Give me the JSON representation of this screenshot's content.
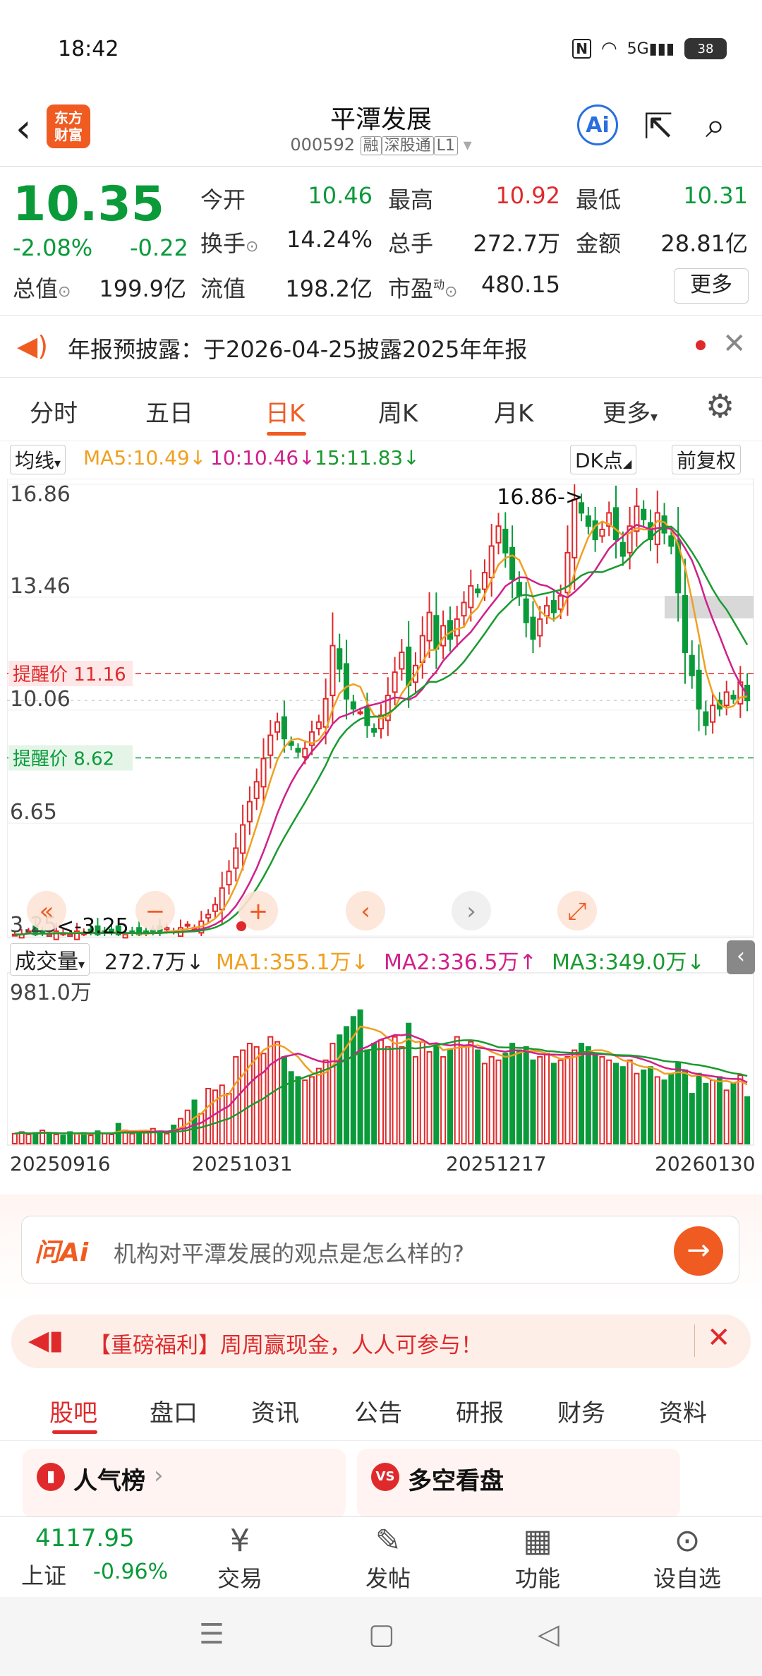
{
  "status": {
    "time": "18:42",
    "nfc": "N",
    "network": "5G",
    "battery": "38"
  },
  "header": {
    "title": "平潭发展",
    "code": "000592",
    "tag_margin": "融",
    "tag_connect": "深股通",
    "tag_level": "L1",
    "logo_line1": "东方",
    "logo_line2": "财富",
    "ai": "Ai"
  },
  "quote": {
    "price": "10.35",
    "pct": "-2.08%",
    "change": "-0.22",
    "open_label": "今开",
    "open": "10.46",
    "high_label": "最高",
    "high": "10.92",
    "low_label": "最低",
    "low": "10.31",
    "turnover_label": "换手",
    "turnover": "14.24%",
    "volume_label": "总手",
    "volume": "272.7万",
    "amount_label": "金额",
    "amount": "28.81亿",
    "mktcap_label": "总值",
    "mktcap": "199.9亿",
    "float_label": "流值",
    "float": "198.2亿",
    "pe_label": "市盈",
    "pe_sup": "动",
    "pe": "480.15",
    "more": "更多"
  },
  "notice": {
    "text": "年报预披露：于2026-04-25披露2025年年报"
  },
  "ktabs": [
    "分时",
    "五日",
    "日K",
    "周K",
    "月K",
    "更多"
  ],
  "ma_row": {
    "selector": "均线",
    "ma5": "MA5:10.49",
    "ma10": "10:10.46",
    "ma15": "15:11.83",
    "dk": "DK点",
    "adj": "前复权"
  },
  "vol_row": {
    "selector": "成交量",
    "vol": "272.7万",
    "ma1": "MA1:355.1万",
    "ma2": "MA2:336.5万",
    "ma3": "MA3:349.0万"
  },
  "colors": {
    "up": "#e0292b",
    "down": "#0a9a3a",
    "accent": "#f05b22",
    "ma5": "#f0a020",
    "ma10": "#d0208a",
    "ma15": "#1a9a30"
  },
  "chart_data": [
    {
      "type": "candlestick",
      "y_ticks": [
        "16.86",
        "13.46",
        "10.06",
        "6.65",
        "3.25"
      ],
      "ylim": [
        3.25,
        16.86
      ],
      "annotations": {
        "max": "16.86->",
        "min": "<-3.25"
      },
      "alerts": [
        {
          "label": "提醒价 11.16",
          "value": 11.16
        },
        {
          "label": "提醒价 8.62",
          "value": 8.62
        }
      ],
      "x_ticks": [
        "20250916",
        "20251031",
        "20251217",
        "20260130"
      ],
      "series": [
        {
          "name": "MA5:10.49"
        },
        {
          "name": "10:10.46"
        },
        {
          "name": "15:11.83"
        }
      ],
      "close_approx": [
        3.3,
        3.3,
        3.4,
        3.3,
        3.35,
        3.3,
        3.4,
        3.35,
        3.3,
        3.4,
        3.35,
        3.4,
        3.3,
        3.35,
        3.4,
        3.3,
        3.3,
        3.35,
        3.3,
        3.35,
        3.4,
        3.35,
        3.5,
        3.4,
        3.5,
        3.6,
        3.5,
        3.7,
        3.9,
        4.2,
        4.7,
        5.2,
        5.9,
        6.6,
        7.3,
        7.9,
        8.6,
        9.3,
        9.7,
        9.2,
        9.0,
        8.8,
        8.9,
        9.4,
        9.7,
        10.4,
        12.0,
        11.3,
        10.4,
        10.1,
        10.0,
        9.6,
        9.4,
        9.9,
        10.5,
        11.2,
        11.8,
        10.8,
        11.4,
        12.3,
        13.0,
        11.9,
        12.6,
        12.2,
        12.8,
        13.3,
        13.8,
        13.6,
        14.2,
        15.0,
        15.6,
        14.8,
        14.0,
        13.5,
        12.7,
        12.2,
        12.8,
        13.2,
        13.0,
        13.5,
        14.8,
        16.4,
        16.0,
        15.6,
        15.2,
        15.5,
        16.0,
        15.2,
        14.7,
        15.6,
        16.2,
        15.8,
        15.2,
        16.0,
        15.4,
        15.0,
        13.6,
        11.8,
        11.1,
        10.1,
        9.6,
        10.2,
        10.1,
        10.6,
        10.4,
        10.9,
        10.35
      ],
      "volume_approx": [
        60,
        70,
        55,
        65,
        80,
        60,
        55,
        50,
        70,
        60,
        65,
        50,
        75,
        60,
        55,
        120,
        80,
        60,
        70,
        65,
        90,
        70,
        60,
        110,
        150,
        200,
        260,
        180,
        330,
        320,
        350,
        300,
        520,
        560,
        600,
        580,
        540,
        640,
        610,
        520,
        430,
        400,
        380,
        400,
        450,
        500,
        600,
        650,
        700,
        760,
        800,
        560,
        600,
        620,
        580,
        640,
        580,
        720,
        520,
        610,
        550,
        600,
        520,
        560,
        640,
        580,
        610,
        560,
        480,
        520,
        500,
        540,
        600,
        560,
        580,
        500,
        520,
        540,
        480,
        500,
        520,
        560,
        600,
        580,
        540,
        520,
        500,
        480,
        460,
        500,
        420,
        440,
        460,
        400,
        380,
        420,
        480,
        440,
        300,
        420,
        360,
        380,
        400,
        320,
        360,
        410,
        280
      ]
    },
    {
      "type": "bar",
      "title": "成交量",
      "y_ticks": [
        "981.0万"
      ],
      "series": [
        {
          "name": "MA1:355.1万"
        },
        {
          "name": "MA2:336.5万"
        },
        {
          "name": "MA3:349.0万"
        }
      ]
    }
  ],
  "ai": {
    "logo": "问Ai",
    "placeholder": "机构对平潭发展的观点是怎么样的?"
  },
  "promo": {
    "text": "【重磅福利】周周赢现金，人人可参与！"
  },
  "sec_tabs": [
    "股吧",
    "盘口",
    "资讯",
    "公告",
    "研报",
    "财务",
    "资料"
  ],
  "cards": {
    "left": "人气榜",
    "right": "多空看盘"
  },
  "bottom_nav": {
    "index_value": "4117.95",
    "index_name": "上证",
    "index_pct": "-0.96%",
    "trade": "交易",
    "post": "发帖",
    "func": "功能",
    "watch": "设自选"
  }
}
